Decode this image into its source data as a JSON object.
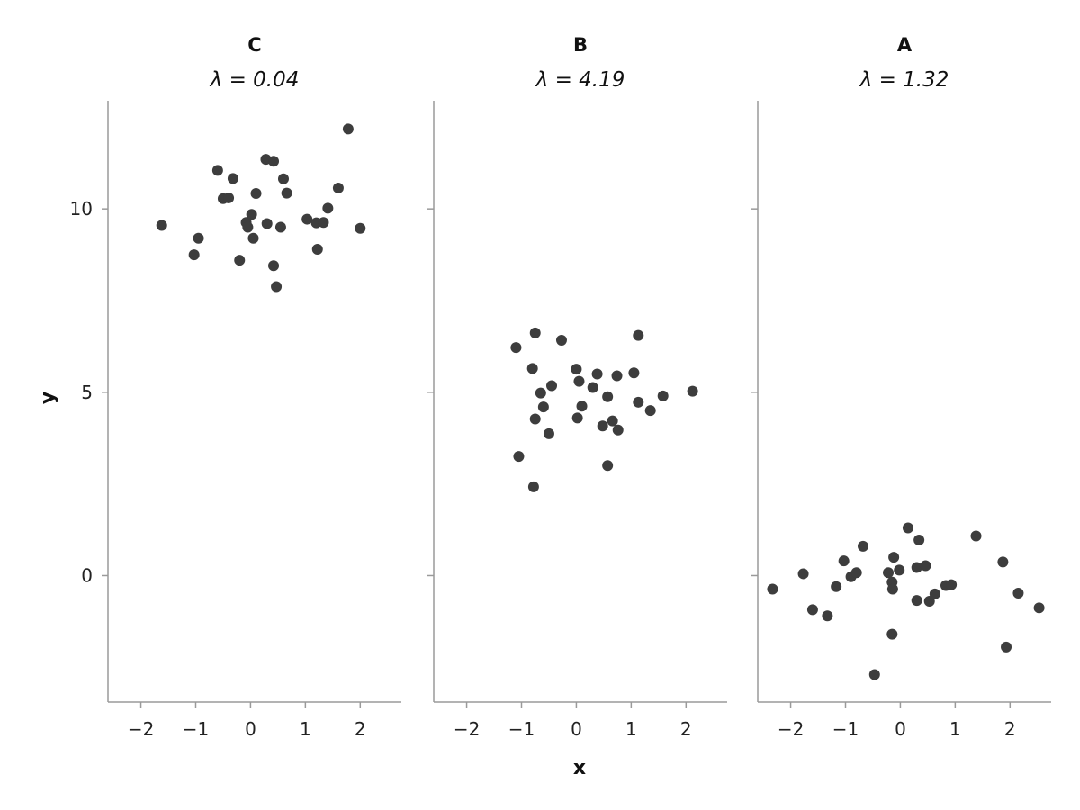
{
  "chart_data": {
    "type": "scatter",
    "xlabel": "x",
    "ylabel": "y",
    "xlim": [
      -2.6,
      2.75
    ],
    "ylim": [
      -3.45,
      12.95
    ],
    "x_ticks": [
      -2,
      -1,
      0,
      1,
      2
    ],
    "y_ticks": [
      0,
      5,
      10
    ],
    "x_tick_labels": [
      "−2",
      "−1",
      "0",
      "1",
      "2"
    ],
    "y_tick_labels": [
      "0",
      "5",
      "10"
    ],
    "grid": false,
    "point_color": "#3d3d3d",
    "panels": [
      {
        "title": "C",
        "subtitle": "λ = 0.04",
        "points": [
          [
            -1.62,
            9.55
          ],
          [
            -1.03,
            8.75
          ],
          [
            -0.95,
            9.2
          ],
          [
            -0.6,
            11.05
          ],
          [
            -0.5,
            10.28
          ],
          [
            -0.4,
            10.3
          ],
          [
            -0.32,
            10.83
          ],
          [
            -0.2,
            8.6
          ],
          [
            -0.08,
            9.63
          ],
          [
            -0.05,
            9.5
          ],
          [
            0.02,
            9.85
          ],
          [
            0.05,
            9.2
          ],
          [
            0.1,
            10.42
          ],
          [
            0.28,
            11.35
          ],
          [
            0.3,
            9.6
          ],
          [
            0.42,
            11.3
          ],
          [
            0.42,
            8.45
          ],
          [
            0.47,
            7.88
          ],
          [
            0.55,
            9.5
          ],
          [
            0.6,
            10.82
          ],
          [
            0.66,
            10.43
          ],
          [
            1.03,
            9.72
          ],
          [
            1.2,
            9.62
          ],
          [
            1.22,
            8.9
          ],
          [
            1.33,
            9.63
          ],
          [
            1.41,
            10.02
          ],
          [
            1.6,
            10.57
          ],
          [
            1.78,
            12.18
          ],
          [
            2.0,
            9.47
          ]
        ]
      },
      {
        "title": "B",
        "subtitle": "λ = 4.19",
        "points": [
          [
            -1.1,
            6.22
          ],
          [
            -1.05,
            3.25
          ],
          [
            -0.8,
            5.65
          ],
          [
            -0.78,
            2.42
          ],
          [
            -0.75,
            6.62
          ],
          [
            -0.75,
            4.27
          ],
          [
            -0.65,
            4.98
          ],
          [
            -0.6,
            4.6
          ],
          [
            -0.5,
            3.87
          ],
          [
            -0.45,
            5.18
          ],
          [
            -0.27,
            6.42
          ],
          [
            0.0,
            5.63
          ],
          [
            0.02,
            4.3
          ],
          [
            0.05,
            5.3
          ],
          [
            0.1,
            4.62
          ],
          [
            0.3,
            5.13
          ],
          [
            0.38,
            5.5
          ],
          [
            0.48,
            4.08
          ],
          [
            0.57,
            4.88
          ],
          [
            0.57,
            3.0
          ],
          [
            0.66,
            4.22
          ],
          [
            0.74,
            5.45
          ],
          [
            0.76,
            3.97
          ],
          [
            1.05,
            5.53
          ],
          [
            1.13,
            6.55
          ],
          [
            1.13,
            4.73
          ],
          [
            1.35,
            4.5
          ],
          [
            1.58,
            4.9
          ],
          [
            2.12,
            5.03
          ]
        ]
      },
      {
        "title": "A",
        "subtitle": "λ = 1.32",
        "points": [
          [
            -2.33,
            -0.37
          ],
          [
            -1.77,
            0.05
          ],
          [
            -1.6,
            -0.93
          ],
          [
            -1.33,
            -1.1
          ],
          [
            -1.17,
            -0.3
          ],
          [
            -1.03,
            0.4
          ],
          [
            -0.9,
            -0.03
          ],
          [
            -0.8,
            0.08
          ],
          [
            -0.68,
            0.8
          ],
          [
            -0.47,
            -2.7
          ],
          [
            -0.22,
            0.08
          ],
          [
            -0.15,
            -0.18
          ],
          [
            -0.14,
            -0.37
          ],
          [
            -0.15,
            -1.6
          ],
          [
            -0.12,
            0.5
          ],
          [
            -0.02,
            0.15
          ],
          [
            0.14,
            1.3
          ],
          [
            0.3,
            -0.68
          ],
          [
            0.3,
            0.22
          ],
          [
            0.34,
            0.97
          ],
          [
            0.46,
            0.27
          ],
          [
            0.53,
            -0.7
          ],
          [
            0.63,
            -0.5
          ],
          [
            0.83,
            -0.27
          ],
          [
            0.93,
            -0.25
          ],
          [
            1.38,
            1.08
          ],
          [
            1.87,
            0.37
          ],
          [
            1.93,
            -1.95
          ],
          [
            2.15,
            -0.48
          ],
          [
            2.53,
            -0.88
          ]
        ]
      }
    ]
  }
}
